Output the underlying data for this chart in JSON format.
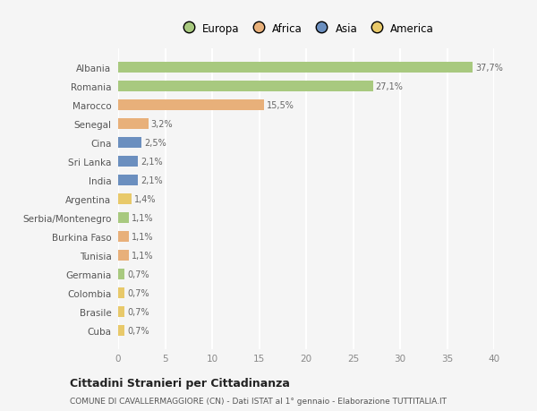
{
  "countries": [
    "Albania",
    "Romania",
    "Marocco",
    "Senegal",
    "Cina",
    "Sri Lanka",
    "India",
    "Argentina",
    "Serbia/Montenegro",
    "Burkina Faso",
    "Tunisia",
    "Germania",
    "Colombia",
    "Brasile",
    "Cuba"
  ],
  "values": [
    37.7,
    27.1,
    15.5,
    3.2,
    2.5,
    2.1,
    2.1,
    1.4,
    1.1,
    1.1,
    1.1,
    0.7,
    0.7,
    0.7,
    0.7
  ],
  "labels": [
    "37,7%",
    "27,1%",
    "15,5%",
    "3,2%",
    "2,5%",
    "2,1%",
    "2,1%",
    "1,4%",
    "1,1%",
    "1,1%",
    "1,1%",
    "0,7%",
    "0,7%",
    "0,7%",
    "0,7%"
  ],
  "colors": [
    "#a8c97f",
    "#a8c97f",
    "#e8b07a",
    "#e8b07a",
    "#6b8fbf",
    "#6b8fbf",
    "#6b8fbf",
    "#e8c96a",
    "#a8c97f",
    "#e8b07a",
    "#e8b07a",
    "#a8c97f",
    "#e8c96a",
    "#e8c96a",
    "#e8c96a"
  ],
  "legend_labels": [
    "Europa",
    "Africa",
    "Asia",
    "America"
  ],
  "legend_colors": [
    "#a8c97f",
    "#e8b07a",
    "#6b8fbf",
    "#e8c96a"
  ],
  "title": "Cittadini Stranieri per Cittadinanza",
  "subtitle": "COMUNE DI CAVALLERMAGGIORE (CN) - Dati ISTAT al 1° gennaio - Elaborazione TUTTITALIA.IT",
  "xlim": [
    0,
    40
  ],
  "xticks": [
    0,
    5,
    10,
    15,
    20,
    25,
    30,
    35,
    40
  ],
  "background_color": "#f5f5f5",
  "grid_color": "#ffffff",
  "bar_height": 0.55
}
